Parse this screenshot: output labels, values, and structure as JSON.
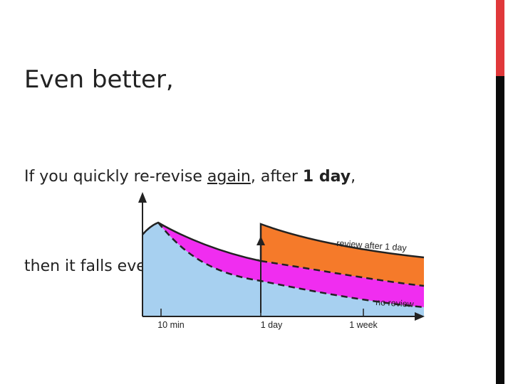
{
  "slide": {
    "title": "Even better,",
    "body": {
      "line1": [
        "If you quickly re-revise ",
        "again",
        ", after ",
        "1 day",
        ","
      ],
      "line2": "then it falls even more slowly!"
    }
  },
  "figure": {
    "curve_labels": [
      "review after 1 day",
      "no review"
    ],
    "x_labels": [
      "10 min",
      "1 day",
      "1 week"
    ]
  }
}
